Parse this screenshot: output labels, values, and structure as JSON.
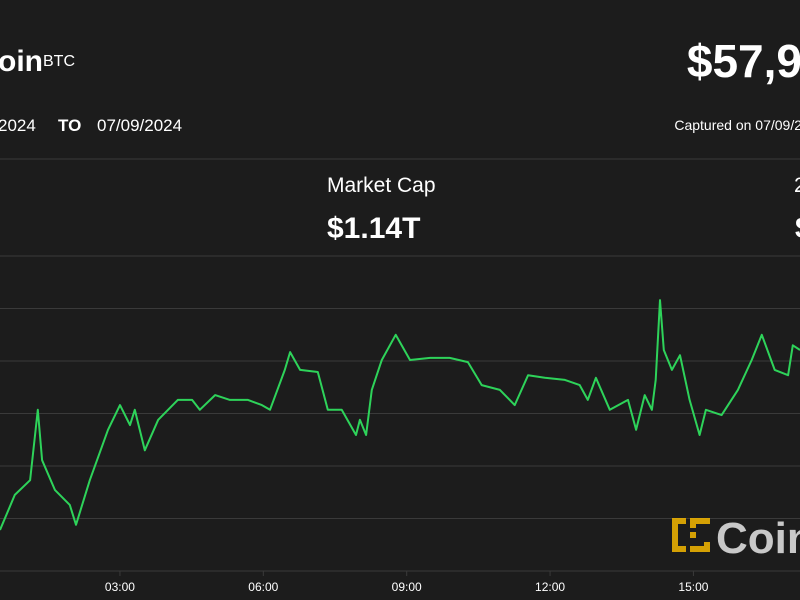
{
  "header": {
    "name": "oin",
    "symbol": "BTC",
    "price": "$57,9"
  },
  "date_range": {
    "from": "2024",
    "to_label": "TO",
    "to": "07/09/2024",
    "captured": "Captured on 07/09/2"
  },
  "stats": [
    {
      "label": "Market Cap",
      "value": "$1.14T"
    },
    {
      "label": "2",
      "value": "$"
    }
  ],
  "watermark": "Coin",
  "chart_data": {
    "type": "line",
    "x": [
      0.49,
      0.8,
      1.12,
      1.28,
      1.37,
      1.64,
      1.95,
      2.08,
      2.37,
      2.75,
      3.0,
      3.21,
      3.31,
      3.52,
      3.8,
      4.21,
      4.51,
      4.67,
      4.99,
      5.3,
      5.68,
      5.97,
      6.14,
      6.45,
      6.56,
      6.77,
      7.14,
      7.35,
      7.64,
      7.94,
      8.02,
      8.15,
      8.27,
      8.48,
      8.77,
      9.07,
      9.49,
      9.9,
      10.28,
      10.57,
      10.95,
      11.26,
      11.54,
      11.89,
      12.31,
      12.62,
      12.79,
      12.96,
      13.25,
      13.63,
      13.8,
      13.98,
      14.13,
      14.21,
      14.3,
      14.38,
      14.55,
      14.72,
      14.92,
      15.13,
      15.26,
      15.59,
      15.93,
      16.22,
      16.43,
      16.7,
      16.98,
      17.08,
      17.23
    ],
    "series": [
      {
        "color": "#2ed35a",
        "values": [
          0.78,
          1.45,
          1.73,
          3.07,
          2.11,
          1.54,
          1.26,
          0.88,
          1.73,
          2.69,
          3.16,
          2.78,
          3.07,
          2.3,
          2.88,
          3.26,
          3.26,
          3.07,
          3.35,
          3.26,
          3.26,
          3.16,
          3.07,
          3.83,
          4.17,
          3.83,
          3.79,
          3.07,
          3.07,
          2.59,
          2.88,
          2.59,
          3.45,
          4.02,
          4.5,
          4.02,
          4.06,
          4.06,
          3.98,
          3.54,
          3.45,
          3.16,
          3.73,
          3.68,
          3.64,
          3.54,
          3.26,
          3.68,
          3.07,
          3.26,
          2.69,
          3.35,
          3.07,
          3.64,
          5.16,
          4.21,
          3.83,
          4.11,
          3.26,
          2.59,
          3.07,
          2.97,
          3.45,
          4.02,
          4.5,
          3.83,
          3.73,
          4.3,
          4.21
        ]
      }
    ],
    "xlim": [
      0.49,
      17.23
    ],
    "xticks": [
      {
        "value": 3,
        "label": "03:00"
      },
      {
        "value": 6,
        "label": "06:00"
      },
      {
        "value": 9,
        "label": "09:00"
      },
      {
        "value": 12,
        "label": "12:00"
      },
      {
        "value": 15,
        "label": "15:00"
      }
    ],
    "ylim": [
      0,
      6
    ],
    "yticks": [
      0,
      1,
      2,
      3,
      4,
      5,
      6
    ],
    "grid": true
  }
}
